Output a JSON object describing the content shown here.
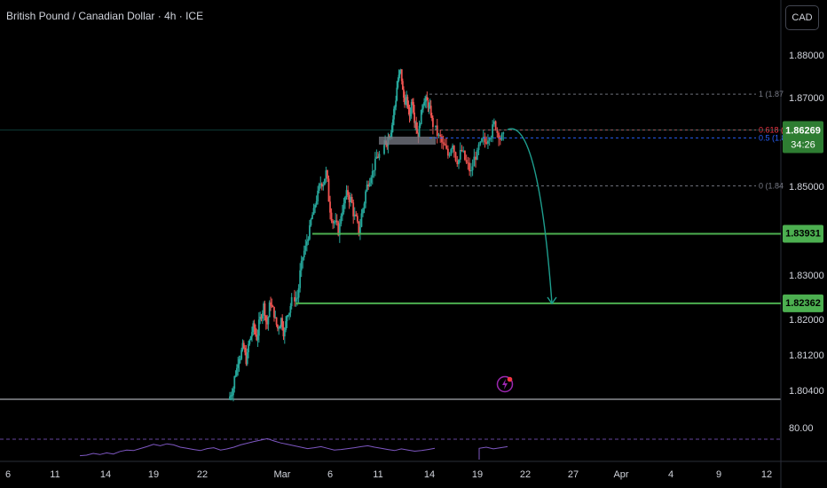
{
  "header": {
    "title": "British Pound / Canadian Dollar · 4h · ICE",
    "currency_button": "CAD"
  },
  "colors": {
    "background": "#000000",
    "candle_up": "#26a69a",
    "candle_down": "#ef5350",
    "level_line": "#4caf50",
    "arrow": "#1e9e8e",
    "rsi_line": "#7e57c2",
    "fib_1": "#787b86",
    "fib_0618": "#f23645",
    "fib_05": "#2962ff",
    "fib_0": "#787b86"
  },
  "price_labels": {
    "current_price": "1.86269",
    "countdown": "34:26",
    "level_1": "1.83931",
    "level_2": "1.82362"
  },
  "fib_labels": {
    "f1": "1 (1.87",
    "f0618": "0.618 (",
    "f05": "0.5 (1.8",
    "f0": "0 (1.84"
  },
  "rsi": {
    "level_label": "80.00",
    "level": 80
  },
  "chart_data": {
    "type": "candlestick",
    "title": "British Pound / Canadian Dollar · 4h · ICE",
    "y_ticks": [
      1.88,
      1.87,
      1.85,
      1.83,
      1.82,
      1.812,
      1.804
    ],
    "y_tick_labels": [
      "1.88000",
      "1.87000",
      "1.85000",
      "1.83000",
      "1.82000",
      "1.81200",
      "1.80400"
    ],
    "x_tick_labels": [
      "6",
      "11",
      "14",
      "19",
      "22",
      "Mar",
      "6",
      "11",
      "14",
      "19",
      "22",
      "27",
      "Apr",
      "4",
      "9",
      "12"
    ],
    "current_price": 1.86269,
    "horizontal_levels": [
      1.83931,
      1.82362
    ],
    "fib_levels": [
      {
        "level": "1",
        "price": 1.8708
      },
      {
        "level": "0.618",
        "price": 1.8627
      },
      {
        "level": "0.5",
        "price": 1.8609
      },
      {
        "level": "0",
        "price": 1.8501
      }
    ],
    "projection": {
      "from": 1.8628,
      "to": 1.8236
    },
    "price_path": [
      [
        1.804,
        1.808,
        1.812,
        1.8135,
        1.811,
        1.815,
        1.818,
        1.816,
        1.82,
        1.823,
        1.819,
        1.824,
        1.8215,
        1.818,
        1.82,
        1.817,
        1.822,
        1.824
      ],
      [
        1.825,
        1.832,
        1.836,
        1.84,
        1.844,
        1.848,
        1.851,
        1.853,
        1.845,
        1.842,
        1.84,
        1.845,
        1.848,
        1.847,
        1.843,
        1.84,
        1.845,
        1.85,
        1.853,
        1.855,
        1.857
      ],
      [
        1.86,
        1.862,
        1.864,
        1.868,
        1.874,
        1.876,
        1.87,
        1.869,
        1.866,
        1.87,
        1.865,
        1.862,
        1.866,
        1.87,
        1.869,
        1.867,
        1.864
      ],
      [
        1.861,
        1.859,
        1.857,
        1.86,
        1.856,
        1.858,
        1.855,
        1.853,
        1.857,
        1.859,
        1.86,
        1.862,
        1.864,
        1.862,
        1.861
      ]
    ]
  }
}
